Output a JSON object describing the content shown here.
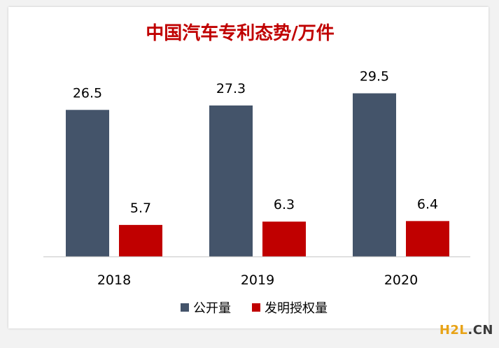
{
  "chart_data": {
    "type": "bar",
    "title": "中国汽车专利态势/万件",
    "categories": [
      "2018",
      "2019",
      "2020"
    ],
    "series": [
      {
        "name": "公开量",
        "values": [
          26.5,
          27.3,
          29.5
        ],
        "color": "#44546a"
      },
      {
        "name": "发明授权量",
        "values": [
          5.7,
          6.3,
          6.4
        ],
        "color": "#c00000"
      }
    ],
    "ylim": [
      0,
      35
    ],
    "grid": false,
    "show_y_axis": false,
    "data_labels": true,
    "legend_position": "bottom",
    "title_color": "#c00000"
  },
  "watermark": {
    "part1": "H2L",
    "part2": ".CN",
    "color1": "#e8a317",
    "color2": "#3a3a3a"
  }
}
